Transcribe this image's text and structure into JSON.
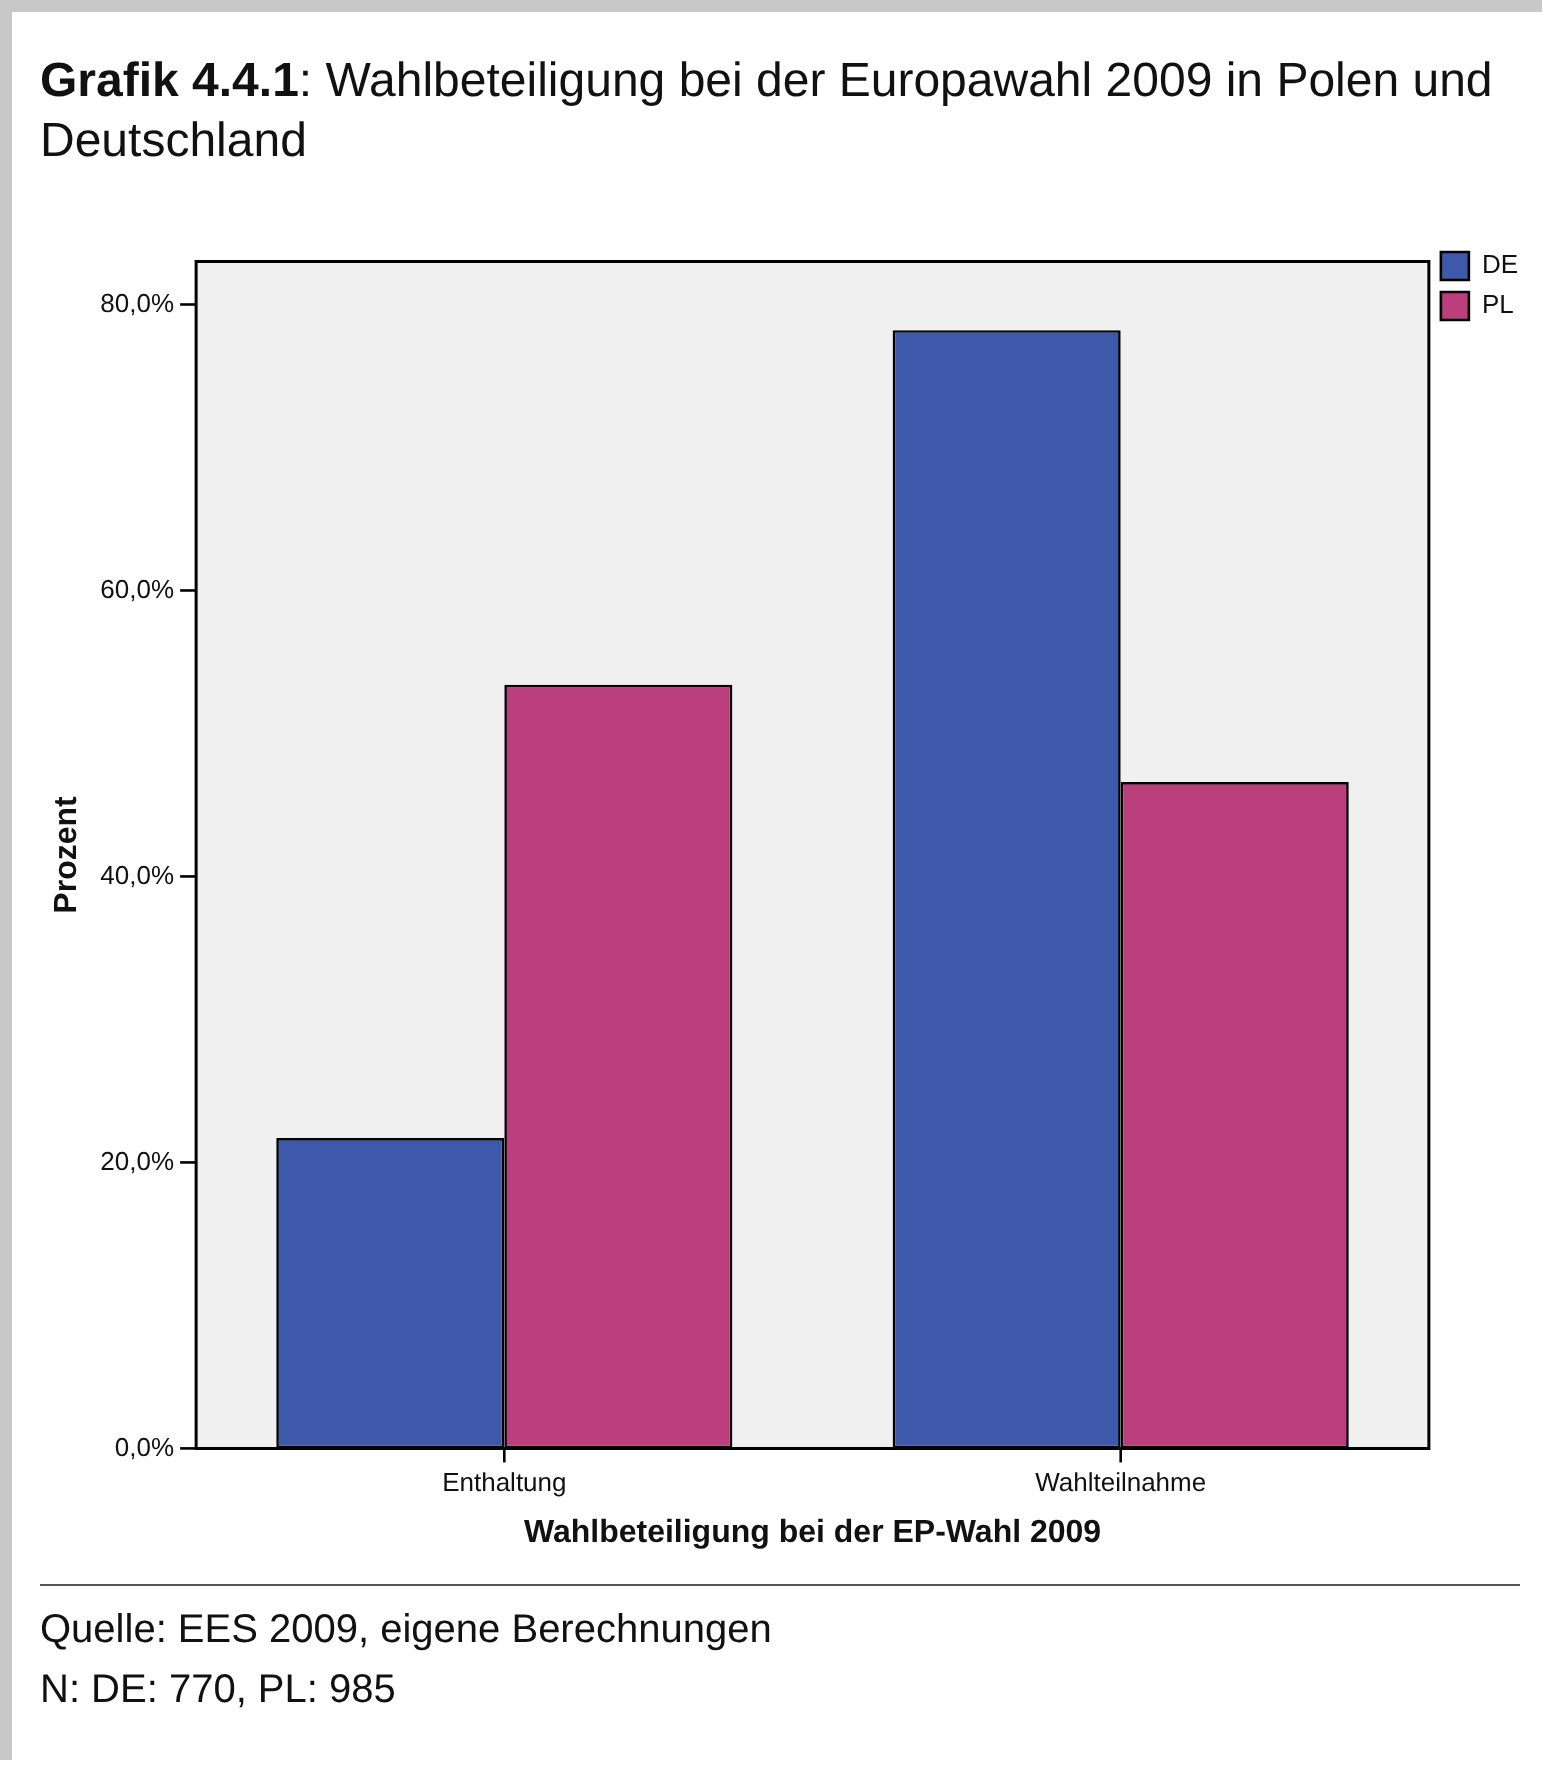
{
  "chart_data": {
    "type": "bar",
    "title": "Grafik 4.4.1: Wahlbeteiligung bei der Europawahl 2009 in Polen und Deutschland",
    "xlabel": "Wahlbeteiligung bei der EP-Wahl 2009",
    "ylabel": "Prozent",
    "categories": [
      "Enthaltung",
      "Wahlteilnahme"
    ],
    "series": [
      {
        "name": "DE",
        "color": "#3f59aa",
        "values": [
          21.7,
          78.2
        ]
      },
      {
        "name": "PL",
        "color": "#bb3f7d",
        "values": [
          53.4,
          46.6
        ]
      }
    ],
    "ylim": [
      0,
      83
    ],
    "yticks": [
      {
        "value": 0,
        "label": "0,0%"
      },
      {
        "value": 20,
        "label": "20,0%"
      },
      {
        "value": 40,
        "label": "40,0%"
      },
      {
        "value": 60,
        "label": "60,0%"
      },
      {
        "value": 80,
        "label": "80,0%"
      }
    ],
    "grid": false,
    "legend": "top right",
    "annotations": [
      "Quelle: EES 2009, eigene Berechnungen",
      "N: DE: 770, PL: 985"
    ]
  }
}
